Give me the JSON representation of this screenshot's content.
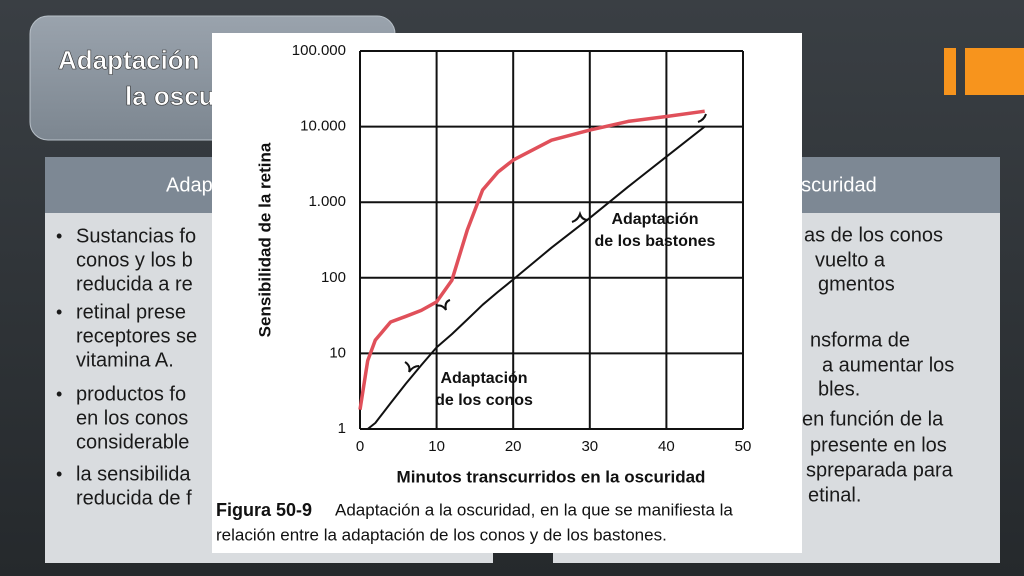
{
  "slide": {
    "title_lines": [
      "Adaptación",
      "la oscu"
    ],
    "left_header": "Adap",
    "left_bullets": [
      [
        "Sustancias fo",
        "conos y los b",
        "reducida a re"
      ],
      [
        "retinal prese",
        "receptores se",
        "vitamina A."
      ],
      [
        "productos fo",
        "en los conos",
        "considerable"
      ],
      [
        "la sensibilida",
        "reducida de f"
      ]
    ],
    "right_header": "oscuridad",
    "right_lines": [
      "as de los conos",
      "vuelto a",
      "gmentos",
      "nsforma de",
      "a aumentar los",
      "bles.",
      "en función de la",
      "presente en los",
      "spreparada para",
      "etinal."
    ]
  },
  "chart_data": {
    "type": "line",
    "x": [
      0,
      1,
      2,
      4,
      6,
      8,
      10,
      12,
      14,
      16,
      18,
      20,
      25,
      30,
      35,
      40,
      45
    ],
    "series": [
      {
        "color": "#e0505a",
        "values": [
          1.8,
          8,
          15,
          26,
          31,
          37,
          48,
          93,
          425,
          1450,
          2500,
          3600,
          6600,
          9000,
          11700,
          13600,
          16000
        ]
      },
      {
        "color": "#111111",
        "values": [
          null,
          1,
          1.2,
          2.2,
          4,
          7,
          12,
          18,
          28,
          44,
          65,
          95,
          250,
          620,
          1600,
          4000,
          10000
        ]
      }
    ],
    "xlim": [
      0,
      50
    ],
    "xticks": [
      0,
      10,
      20,
      30,
      40,
      50
    ],
    "ylim": [
      1,
      100000
    ],
    "yticks": [
      1,
      10,
      100,
      {
        "value": 1000,
        "label": "1.000"
      },
      {
        "value": 10000,
        "label": "10.000"
      },
      {
        "value": 100000,
        "label": "100.000"
      }
    ],
    "log_y": true,
    "grid": true,
    "y_label": "Sensibilidad de la retina",
    "x_label": "Minutos transcurridos en la oscuridad",
    "annotations": [
      {
        "lines": [
          "Adaptación",
          "de los bastones"
        ]
      },
      {
        "lines": [
          "Adaptación",
          "de los conos"
        ]
      }
    ],
    "caption_label": "Figura 50-9",
    "caption_lines": [
      "Adaptación a la oscuridad, en la que se manifiesta la",
      "relación entre la adaptación de los conos y de los bastones."
    ]
  }
}
